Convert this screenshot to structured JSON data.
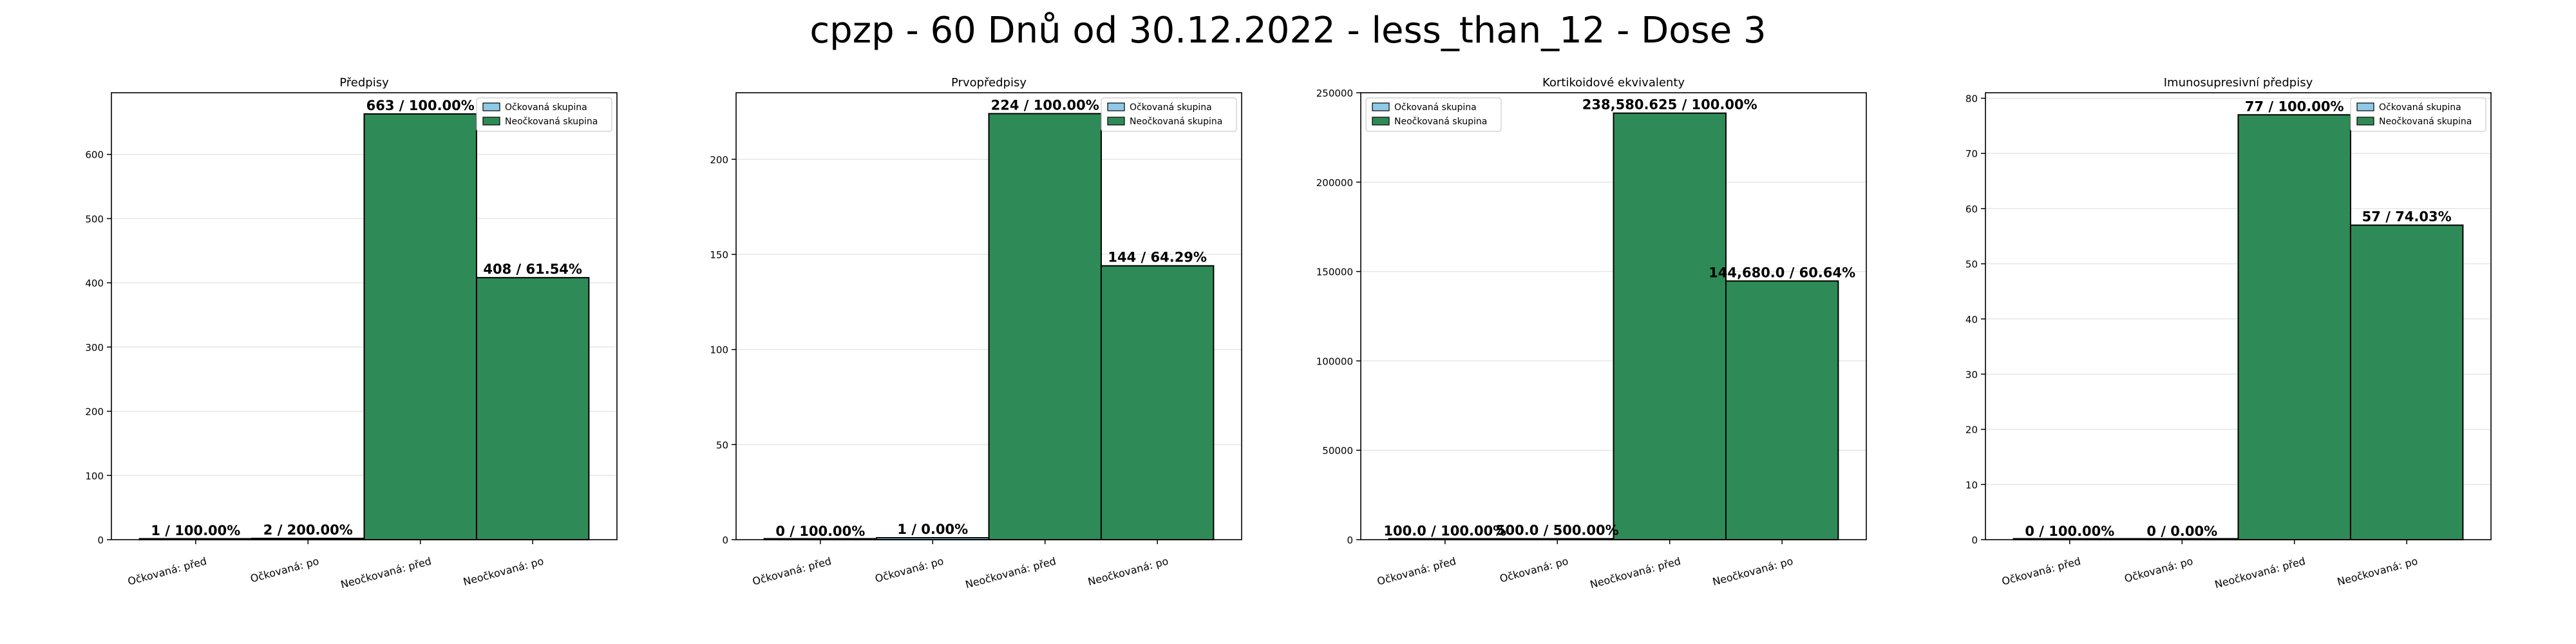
{
  "suptitle": "cpzp - 60 Dnů od 30.12.2022 - less_than_12 - Dose 3",
  "colors": {
    "vaccinated": "#8ecae6",
    "unvaccinated": "#2e8b57",
    "edge": "#000000",
    "grid": "#e6e6e6"
  },
  "chart_data": [
    {
      "type": "bar",
      "title": "Předpisy",
      "categories": [
        "Očkovaná: před",
        "Očkovaná: po",
        "Neočkovaná: před",
        "Neočkovaná: po"
      ],
      "values": [
        1,
        2,
        663,
        408
      ],
      "groups": [
        "vaccinated",
        "vaccinated",
        "unvaccinated",
        "unvaccinated"
      ],
      "bar_labels": [
        "1 / 100.00%",
        "2 / 200.00%",
        "663 / 100.00%",
        "408 / 61.54%"
      ],
      "ylim": [
        0,
        696
      ],
      "yticks": [
        0,
        100,
        200,
        300,
        400,
        500,
        600
      ],
      "ytick_labels": [
        "0",
        "100",
        "200",
        "300",
        "400",
        "500",
        "600"
      ],
      "legend": [
        "Očkovaná skupina",
        "Neočkovaná skupina"
      ],
      "legend_position": "upper right",
      "grid": true
    },
    {
      "type": "bar",
      "title": "Prvopředpisy",
      "categories": [
        "Očkovaná: před",
        "Očkovaná: po",
        "Neočkovaná: před",
        "Neočkovaná: po"
      ],
      "values": [
        0,
        1,
        224,
        144
      ],
      "groups": [
        "vaccinated",
        "vaccinated",
        "unvaccinated",
        "unvaccinated"
      ],
      "bar_labels": [
        "0 / 100.00%",
        "1 / 0.00%",
        "224 / 100.00%",
        "144 / 64.29%"
      ],
      "ylim": [
        0,
        235
      ],
      "yticks": [
        0,
        50,
        100,
        150,
        200
      ],
      "ytick_labels": [
        "0",
        "50",
        "100",
        "150",
        "200"
      ],
      "legend": [
        "Očkovaná skupina",
        "Neočkovaná skupina"
      ],
      "legend_position": "upper right",
      "grid": true
    },
    {
      "type": "bar",
      "title": "Kortikoidové ekvivalenty",
      "categories": [
        "Očkovaná: před",
        "Očkovaná: po",
        "Neočkovaná: před",
        "Neočkovaná: po"
      ],
      "values": [
        100.0,
        500.0,
        238580.625,
        144680.0
      ],
      "groups": [
        "vaccinated",
        "vaccinated",
        "unvaccinated",
        "unvaccinated"
      ],
      "bar_labels": [
        "100.0 / 100.00%",
        "500.0 / 500.00%",
        "238,580.625 / 100.00%",
        "144,680.0 / 60.64%"
      ],
      "ylim": [
        0,
        250000
      ],
      "yticks": [
        0,
        50000,
        100000,
        150000,
        200000,
        250000
      ],
      "ytick_labels": [
        "0",
        "50000",
        "100000",
        "150000",
        "200000",
        "250000"
      ],
      "legend": [
        "Očkovaná skupina",
        "Neočkovaná skupina"
      ],
      "legend_position": "upper left",
      "grid": true
    },
    {
      "type": "bar",
      "title": "Imunosupresivní předpisy",
      "categories": [
        "Očkovaná: před",
        "Očkovaná: po",
        "Neočkovaná: před",
        "Neočkovaná: po"
      ],
      "values": [
        0,
        0,
        77,
        57
      ],
      "groups": [
        "vaccinated",
        "vaccinated",
        "unvaccinated",
        "unvaccinated"
      ],
      "bar_labels": [
        "0 / 100.00%",
        "0 / 0.00%",
        "77 / 100.00%",
        "57 / 74.03%"
      ],
      "ylim": [
        0,
        81
      ],
      "yticks": [
        0,
        10,
        20,
        30,
        40,
        50,
        60,
        70,
        80
      ],
      "ytick_labels": [
        "0",
        "10",
        "20",
        "30",
        "40",
        "50",
        "60",
        "70",
        "80"
      ],
      "legend": [
        "Očkovaná skupina",
        "Neočkovaná skupina"
      ],
      "legend_position": "upper right",
      "grid": true
    }
  ]
}
